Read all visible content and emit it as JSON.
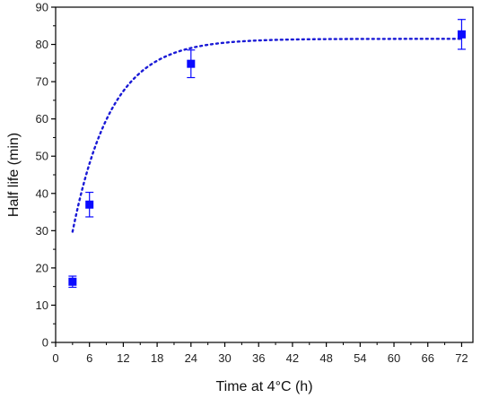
{
  "chart_data": {
    "type": "scatter",
    "xlabel": "Time at 4°C (h)",
    "ylabel": "Half life (min)",
    "xlim": [
      0,
      74
    ],
    "ylim": [
      0,
      90
    ],
    "x_ticks": [
      0,
      6,
      12,
      18,
      24,
      30,
      36,
      42,
      48,
      54,
      60,
      66,
      72
    ],
    "y_ticks": [
      0,
      10,
      20,
      30,
      40,
      50,
      60,
      70,
      80,
      90
    ],
    "grid": false,
    "series": [
      {
        "marker": "square",
        "color": "#0a0aff",
        "points": [
          {
            "x": 3,
            "y": 16.3,
            "err": 1.5
          },
          {
            "x": 6,
            "y": 37.0,
            "err": 3.3
          },
          {
            "x": 24,
            "y": 74.8,
            "err": 3.7
          },
          {
            "x": 72,
            "y": 82.7,
            "err": 4.0
          }
        ]
      }
    ],
    "fit_curve": {
      "style": "dotted",
      "color": "#1a1ad6",
      "plateau": 81.5,
      "amplitude": 80.0,
      "rate": 0.145,
      "x_start": 3,
      "x_end": 72
    }
  }
}
